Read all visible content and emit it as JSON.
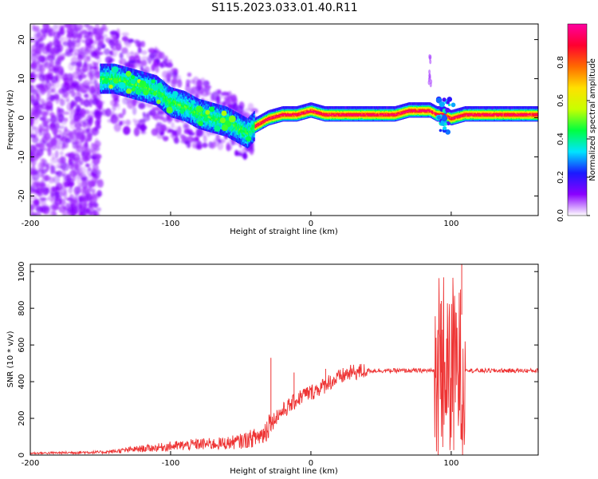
{
  "figure_title": "S115.2023.033.01.40.R11",
  "chart_data": [
    {
      "type": "heatmap",
      "name": "spectrogram",
      "xlabel": "Height of straight line (km)",
      "ylabel": "Frequency (Hz)",
      "xlim": [
        -200,
        162
      ],
      "ylim": [
        -25,
        24
      ],
      "xticks": [
        "-200",
        "-100",
        "0",
        "100"
      ],
      "xtick_values": [
        -200,
        -100,
        0,
        100
      ],
      "yticks": [
        "-20",
        "-10",
        "0",
        "10",
        "20"
      ],
      "ytick_values": [
        -20,
        -10,
        0,
        10,
        20
      ],
      "ridge_x": [
        -150,
        -140,
        -130,
        -120,
        -110,
        -100,
        -90,
        -80,
        -70,
        -60,
        -50,
        -45,
        -40,
        -30,
        -20,
        -10,
        0,
        10,
        20,
        30,
        40,
        50,
        60,
        70,
        80,
        85,
        90,
        95,
        100,
        110,
        120,
        130,
        140,
        150,
        162
      ],
      "ridge_y": [
        10,
        10,
        9,
        8,
        7,
        4,
        3,
        1,
        0,
        -1,
        -3,
        -4,
        -2,
        0,
        1,
        1,
        2,
        1,
        1,
        1,
        1,
        1,
        1,
        2,
        2,
        2,
        1,
        1,
        0,
        1,
        1,
        1,
        1,
        1,
        1
      ],
      "colorbar": {
        "label": "Normalized spectral amplitude",
        "range": [
          0.0,
          1.0
        ],
        "ticks": [
          "0.0",
          "0.2",
          "0.4",
          "0.6",
          "0.8"
        ],
        "tick_values": [
          0.0,
          0.2,
          0.4,
          0.6,
          0.8
        ],
        "colormap": [
          "#ffffff",
          "#8a00ff",
          "#1a1aff",
          "#00e5ff",
          "#00ff40",
          "#c8ff00",
          "#ffe000",
          "#ff6a00",
          "#ff0030",
          "#ff00a0"
        ]
      }
    },
    {
      "type": "line",
      "name": "snr",
      "xlabel": "Height of straight line (km)",
      "ylabel": "SNR (10 * v/v)",
      "xlim": [
        -200,
        162
      ],
      "ylim": [
        0,
        1040
      ],
      "xticks": [
        "-200",
        "-100",
        "0",
        "100"
      ],
      "xtick_values": [
        -200,
        -100,
        0,
        100
      ],
      "yticks": [
        "0",
        "200",
        "400",
        "600",
        "800",
        "1000"
      ],
      "ytick_values": [
        0,
        200,
        400,
        600,
        800,
        1000
      ],
      "color": "#ee3333",
      "series": [
        {
          "name": "SNR",
          "x": [
            -200,
            -180,
            -160,
            -150,
            -140,
            -130,
            -120,
            -110,
            -100,
            -90,
            -80,
            -70,
            -60,
            -50,
            -40,
            -35,
            -32,
            -30,
            -28,
            -25,
            -20,
            -15,
            -10,
            -5,
            0,
            5,
            10,
            12,
            15,
            20,
            25,
            30,
            40,
            50,
            60,
            70,
            80,
            85,
            88,
            90,
            92,
            94,
            96,
            98,
            100,
            102,
            104,
            106,
            108,
            110,
            115,
            120,
            130,
            140,
            150,
            162
          ],
          "y": [
            10,
            12,
            15,
            15,
            20,
            28,
            35,
            40,
            48,
            52,
            60,
            60,
            65,
            75,
            95,
            110,
            130,
            200,
            170,
            210,
            240,
            270,
            300,
            330,
            340,
            360,
            380,
            400,
            400,
            420,
            440,
            450,
            460,
            460,
            460,
            460,
            460,
            460,
            460,
            450,
            600,
            300,
            700,
            150,
            750,
            80,
            780,
            60,
            1000,
            470,
            460,
            460,
            460,
            460,
            460,
            460
          ]
        }
      ],
      "spikes": [
        {
          "x": -28.5,
          "y": 530
        },
        {
          "x": -12,
          "y": 450
        },
        {
          "x": 10.5,
          "y": 470
        },
        {
          "x": 107.5,
          "y": 1040
        },
        {
          "x": 93,
          "y": 840
        }
      ]
    }
  ]
}
